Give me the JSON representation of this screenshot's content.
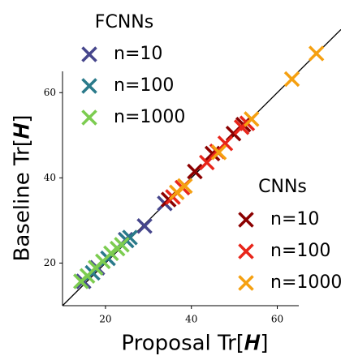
{
  "chart_data": {
    "type": "scatter",
    "xlabel": "Proposal Tr[𝑯]",
    "ylabel": "Baseline Tr[𝑯]",
    "xlim": [
      10,
      65
    ],
    "ylim": [
      10,
      65
    ],
    "xticks": [
      20,
      40,
      60
    ],
    "yticks": [
      20,
      40,
      60
    ],
    "legends": [
      {
        "title": "FCNNs",
        "series": [
          {
            "name": "n=10",
            "color": "#46468c",
            "x": [
              14.9,
              18.1,
              24.7,
              29.1,
              33.8
            ],
            "values": [
              15.7,
              18.9,
              25.5,
              28.7,
              34.0
            ]
          },
          {
            "name": "n=100",
            "color": "#2a7a8a",
            "x": [
              17.0,
              20.6,
              24.9,
              25.7
            ],
            "values": [
              17.7,
              21.1,
              25.3,
              26.0
            ]
          },
          {
            "name": "n=1000",
            "color": "#7ccc50",
            "x": [
              14.3,
              15.8,
              17.7,
              19.4,
              21.3,
              22.8,
              23.8
            ],
            "values": [
              15.7,
              17.0,
              18.9,
              20.4,
              22.3,
              23.4,
              24.3
            ]
          }
        ]
      },
      {
        "title": "CNNs",
        "series": [
          {
            "name": "n=10",
            "color": "#8b0000",
            "x": [
              34.7,
              40.8,
              44.9,
              49.8,
              52.1
            ],
            "values": [
              34.9,
              41.5,
              45.7,
              50.4,
              52.5
            ]
          },
          {
            "name": "n=100",
            "color": "#e8251a",
            "x": [
              35.7,
              37.9,
              43.6,
              46.0,
              47.9,
              51.7,
              53.0
            ],
            "values": [
              35.5,
              37.7,
              43.6,
              46.2,
              48.1,
              51.9,
              52.8
            ]
          },
          {
            "name": "n=1000",
            "color": "#f5a010",
            "x": [
              36.6,
              38.5,
              46.4,
              54.0,
              63.4,
              69.1
            ],
            "values": [
              36.6,
              38.1,
              46.0,
              53.8,
              63.2,
              69.2
            ]
          }
        ]
      }
    ]
  }
}
